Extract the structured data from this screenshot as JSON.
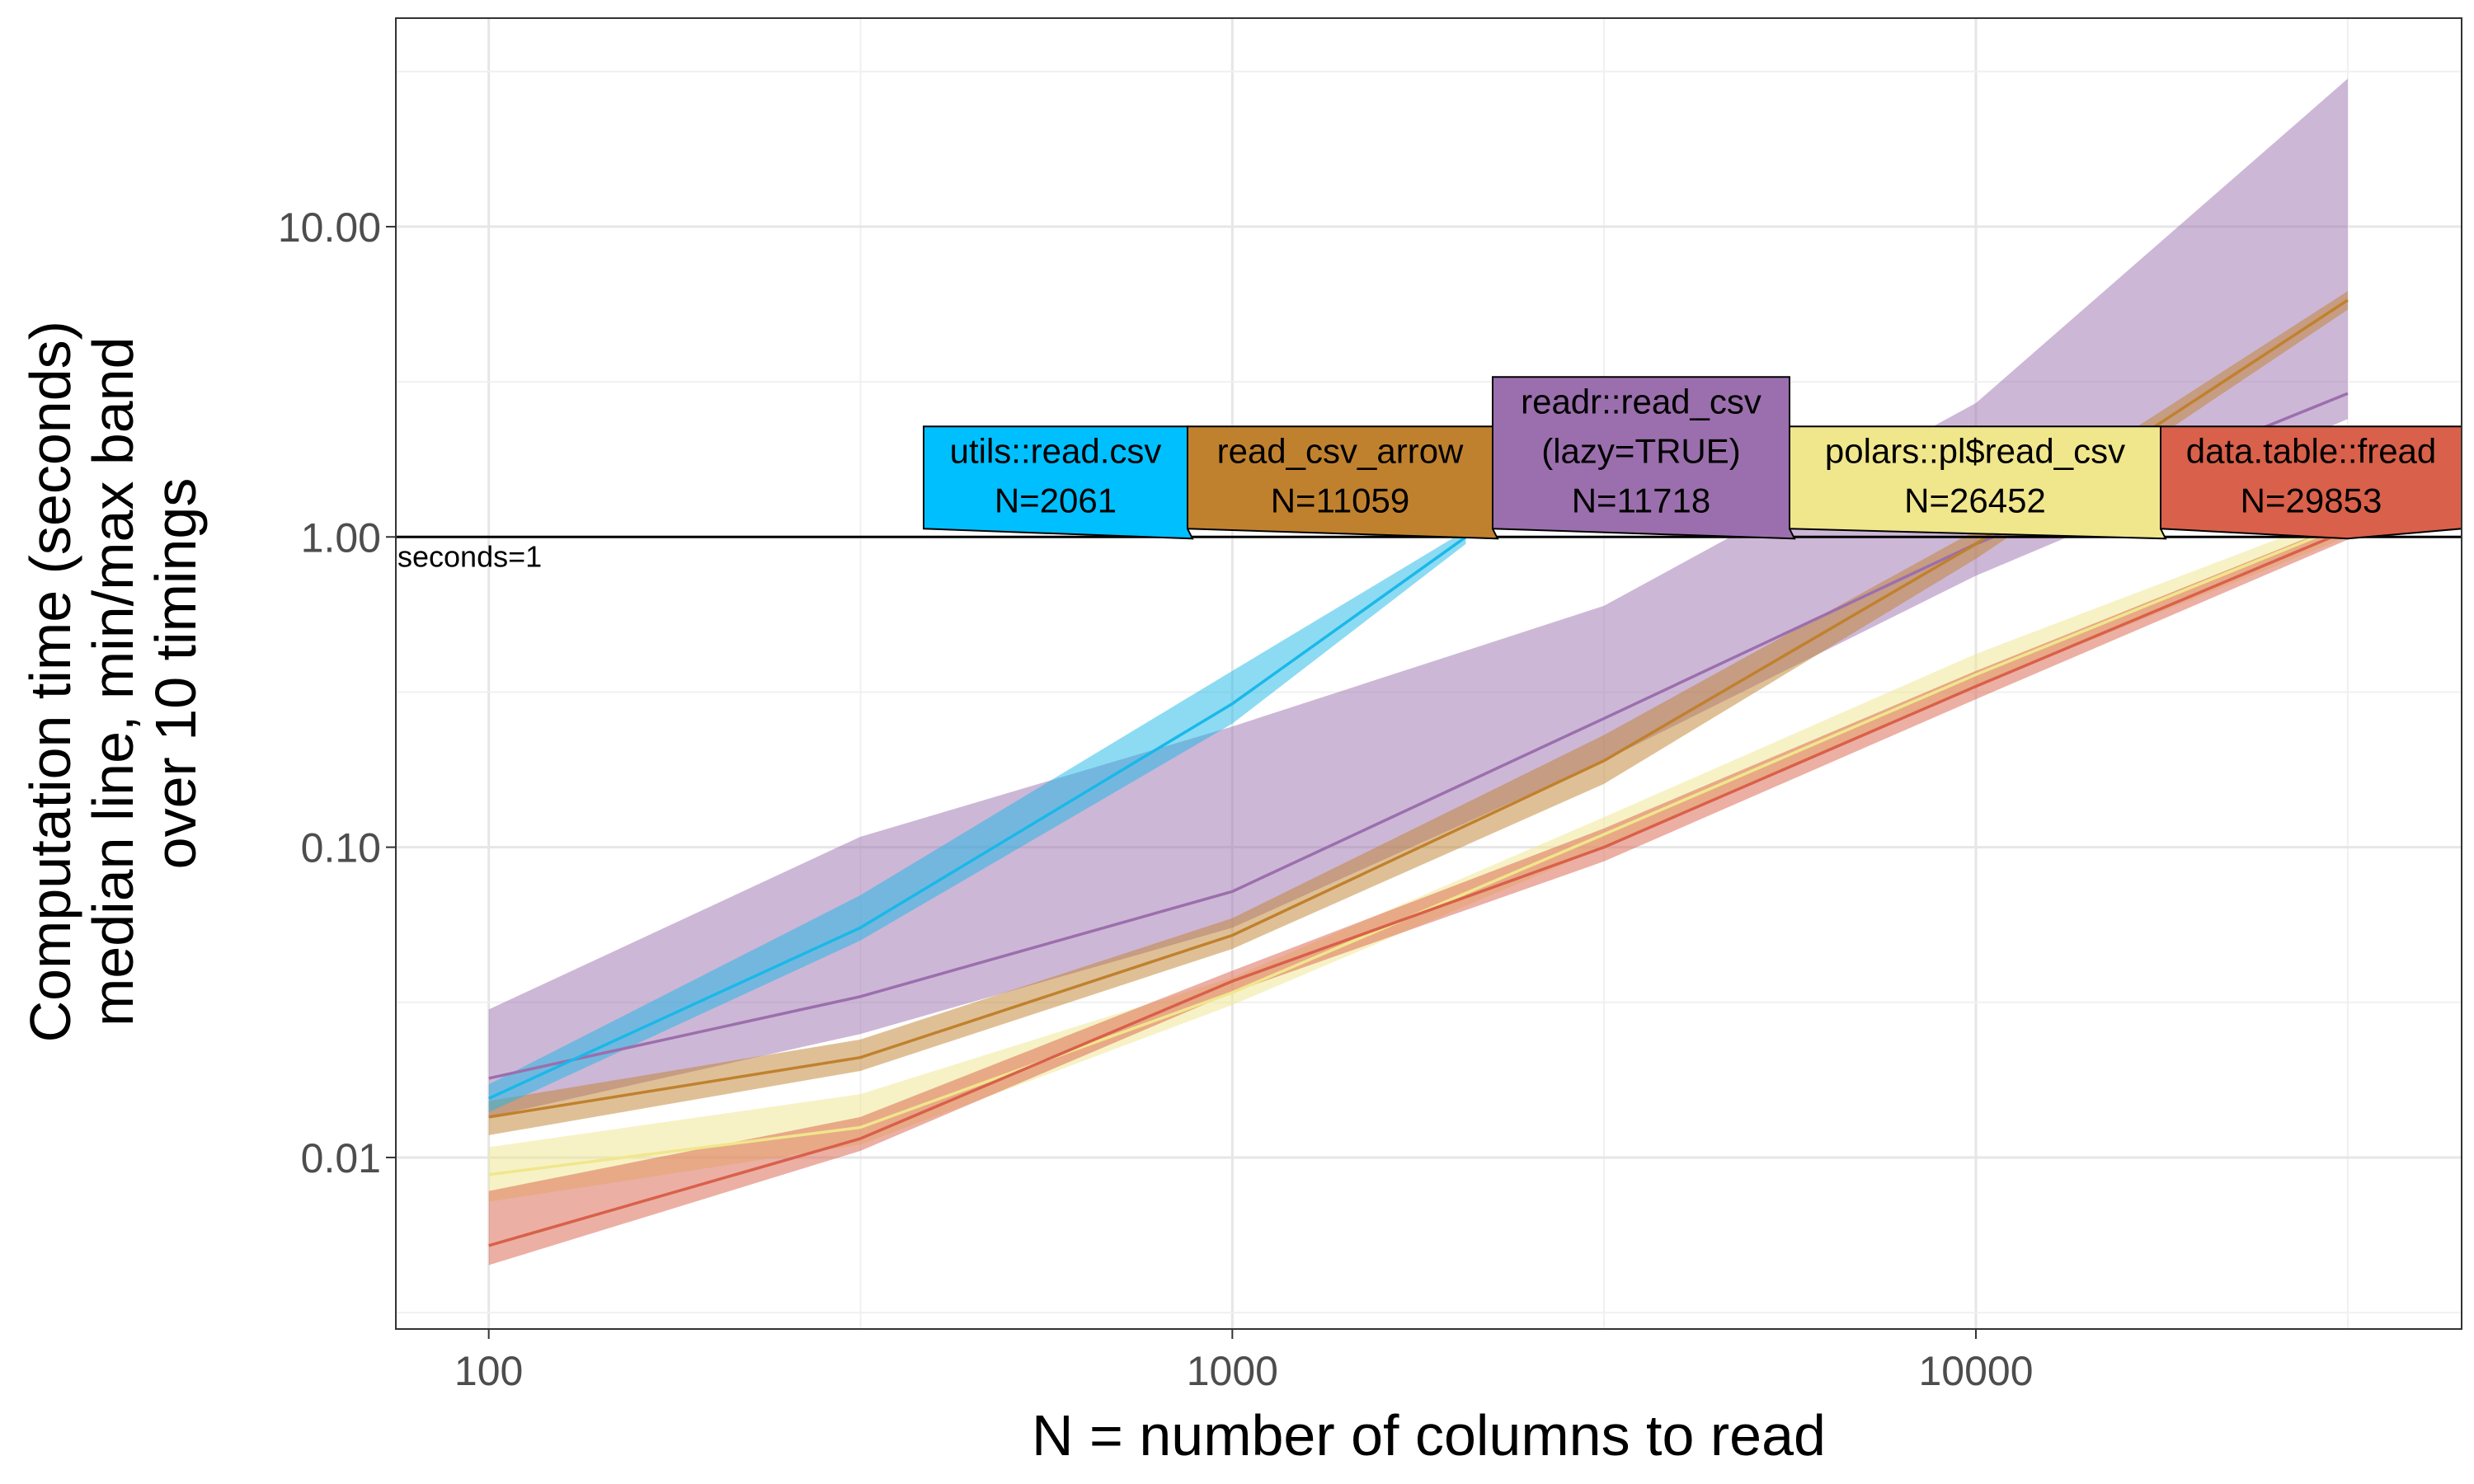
{
  "chart_data": {
    "type": "line",
    "xlabel": "N = number of columns to read",
    "ylabel_lines": [
      "Computation time (seconds)",
      "median line, min/max band",
      "over 10 timings"
    ],
    "x_scale": "log10",
    "y_scale": "log10",
    "xlim": [
      75,
      45000
    ],
    "ylim": [
      0.0028,
      47
    ],
    "x_ticks": [
      100,
      1000,
      10000
    ],
    "x_tick_labels": [
      "100",
      "1000",
      "10000"
    ],
    "y_ticks": [
      0.01,
      0.1,
      1,
      10
    ],
    "y_tick_labels": [
      "0.01",
      "0.10",
      "1.00",
      "10.00"
    ],
    "grid": true,
    "reference_line": {
      "y": 1,
      "label": "seconds=1"
    },
    "series": [
      {
        "key": "readr",
        "color": "#9b6fad",
        "x": [
          100,
          316,
          1000,
          3162,
          10000,
          31623
        ],
        "median": [
          0.018,
          0.033,
          0.072,
          0.26,
          0.95,
          2.9
        ],
        "min": [
          0.0135,
          0.025,
          0.055,
          0.19,
          0.75,
          2.4
        ],
        "max": [
          0.03,
          0.108,
          0.245,
          0.6,
          2.7,
          30.0
        ],
        "label_lines": [
          "readr::read_csv",
          "(lazy=TRUE)",
          "N=11718"
        ]
      },
      {
        "key": "arrow",
        "color": "#c0812e",
        "x": [
          100,
          316,
          1000,
          3162,
          10000,
          31623
        ],
        "median": [
          0.0135,
          0.021,
          0.052,
          0.19,
          0.95,
          5.8
        ],
        "min": [
          0.0118,
          0.019,
          0.047,
          0.16,
          0.85,
          5.4
        ],
        "max": [
          0.0152,
          0.024,
          0.059,
          0.23,
          1.05,
          6.2
        ],
        "label_lines": [
          "read_csv_arrow",
          "N=11059"
        ]
      },
      {
        "key": "polars",
        "color": "#f0e68c",
        "x": [
          100,
          316,
          1000,
          3162,
          10000,
          31623
        ],
        "median": [
          0.0088,
          0.0125,
          0.034,
          0.11,
          0.36,
          1.1
        ],
        "min": [
          0.0072,
          0.011,
          0.031,
          0.1,
          0.33,
          1.0
        ],
        "max": [
          0.0108,
          0.016,
          0.038,
          0.125,
          0.42,
          1.2
        ],
        "label_lines": [
          "polars::pl$read_csv",
          "N=26452"
        ]
      },
      {
        "key": "datatable",
        "color": "#d9604a",
        "x": [
          100,
          316,
          1000,
          3162,
          10000,
          31623
        ],
        "median": [
          0.0052,
          0.0115,
          0.037,
          0.1,
          0.33,
          1.05
        ],
        "min": [
          0.0045,
          0.0105,
          0.034,
          0.09,
          0.3,
          0.98
        ],
        "max": [
          0.0078,
          0.0135,
          0.04,
          0.115,
          0.37,
          1.12
        ],
        "label_lines": [
          "data.table::fread",
          "N=29853"
        ]
      },
      {
        "key": "utils",
        "color": "#1ab8e8",
        "x": [
          100,
          316,
          1000,
          2061
        ],
        "median": [
          0.0155,
          0.055,
          0.29,
          1.0
        ],
        "min": [
          0.014,
          0.05,
          0.25,
          0.95
        ],
        "max": [
          0.0172,
          0.07,
          0.37,
          1.05
        ],
        "label_lines": [
          "utils::read.csv",
          "N=2061"
        ]
      }
    ]
  },
  "colors": {
    "utils_label_fill": "#00bfff",
    "utils_band": "#00bfff",
    "arrow_label_fill": "#c0812e",
    "readr_label_fill": "#9b6fad",
    "polars_label_fill": "#f0e68c",
    "datatable_label_fill": "#d9604a"
  }
}
